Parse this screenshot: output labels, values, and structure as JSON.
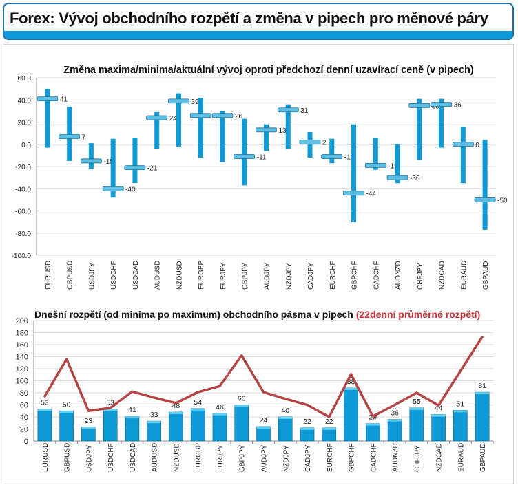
{
  "header": {
    "title": "Forex: Vývoj obchodního rozpětí a změna v pipech pro měnové páry"
  },
  "chart_data": [
    {
      "type": "bar",
      "subtype": "high-low-close",
      "title": "Změna maxima/minima/aktuální vývoj oproti předchozí denní uzavírací ceně (v pipech)",
      "xlabel": "",
      "ylabel": "",
      "ylim": [
        -100,
        60
      ],
      "yticks": [
        "60.0",
        "40.0",
        "20.0",
        "0.0",
        "-20.0",
        "-40.0",
        "-60.0",
        "-80.0",
        "-100.0"
      ],
      "ytick_values": [
        60,
        40,
        20,
        0,
        -20,
        -40,
        -60,
        -80,
        -100
      ],
      "grid": true,
      "categories": [
        "EURUSD",
        "GBPUSD",
        "USDJPY",
        "USDCHF",
        "USDCAD",
        "AUDUSD",
        "NZDUSD",
        "EURGBP",
        "EURJPY",
        "GBPJPY",
        "AUDJPY",
        "NZDJPY",
        "CADJPY",
        "EURCHF",
        "GBPCHF",
        "CADCHF",
        "AUDNZD",
        "CHFJPY",
        "NZDCAD",
        "EURAUD",
        "GBPAUD"
      ],
      "high": [
        50,
        34,
        1,
        5,
        6,
        29,
        46,
        42,
        30,
        23,
        18,
        36,
        11,
        5,
        18,
        6,
        0,
        41,
        41,
        16,
        4
      ],
      "low": [
        -3,
        -15,
        -22,
        -48,
        -35,
        -4,
        -2,
        -12,
        -16,
        -37,
        -6,
        -4,
        -12,
        -17,
        -70,
        -23,
        -35,
        -14,
        -3,
        -35,
        -77
      ],
      "current": [
        41,
        7,
        -15,
        -40,
        -21,
        24,
        39,
        26,
        26,
        -11,
        13,
        31,
        2,
        -11,
        -44,
        -19,
        -30,
        35,
        36,
        0,
        -50
      ],
      "colors": {
        "range": "#0d9ad6",
        "marker": "#5cc0e6"
      }
    },
    {
      "type": "bar",
      "title": "Dnešní rozpětí (od minima po maximum) obchodního pásma v pipech",
      "title_highlight": "(22denní průměrné rozpětí)",
      "xlabel": "",
      "ylabel": "",
      "ylim": [
        0,
        200
      ],
      "yticks": [
        "0",
        "20",
        "40",
        "60",
        "80",
        "100",
        "120",
        "140",
        "160",
        "180",
        "200"
      ],
      "ytick_values": [
        0,
        20,
        40,
        60,
        80,
        100,
        120,
        140,
        160,
        180,
        200
      ],
      "grid": true,
      "categories": [
        "EURUSD",
        "GBPUSD",
        "USDJPY",
        "USDCHF",
        "USDCAD",
        "AUDUSD",
        "NZDUSD",
        "EURGBP",
        "EURJPY",
        "GBPJPY",
        "AUDJPY",
        "NZDJPY",
        "CADJPY",
        "EURCHF",
        "GBPCHF",
        "CADCHF",
        "AUDNZD",
        "CHFJPY",
        "NZDCAD",
        "EURAUD",
        "GBPAUD"
      ],
      "series": [
        {
          "type": "bar",
          "values": [
            53,
            50,
            23,
            53,
            41,
            33,
            48,
            54,
            46,
            60,
            24,
            40,
            22,
            22,
            88,
            29,
            36,
            55,
            44,
            51,
            81
          ],
          "color": "#0d9ad6"
        },
        {
          "type": "line",
          "name": "(22denní průměrné rozpětí)",
          "values": [
            74,
            136,
            50,
            55,
            82,
            72,
            63,
            81,
            91,
            142,
            81,
            70,
            60,
            40,
            111,
            41,
            60,
            80,
            59,
            116,
            173
          ],
          "color": "#b54545"
        }
      ]
    }
  ]
}
